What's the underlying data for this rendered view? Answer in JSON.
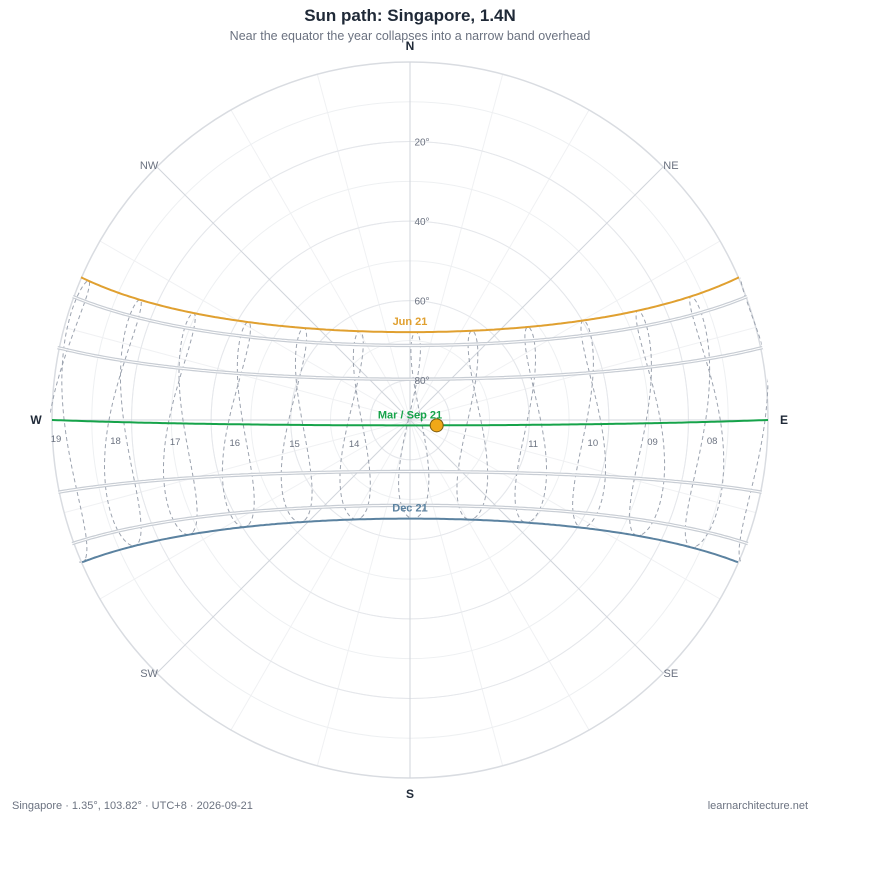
{
  "title": "Sun path: Singapore, 1.4N",
  "subtitle": "Near the equator the year collapses into a narrow band overhead",
  "footer": {
    "location": "Singapore  ·  1.35°, 103.82°  ·  UTC+8  ·  2026-09-21",
    "credit": "learnarchitecture.net"
  },
  "chart_data": {
    "type": "polar sun-path",
    "latitude": 1.35,
    "longitude": 103.82,
    "timezone": "UTC+8",
    "date": "2026-09-21",
    "directions": [
      {
        "label": "N",
        "azimuth": 0,
        "major": true
      },
      {
        "label": "NE",
        "azimuth": 45,
        "major": false
      },
      {
        "label": "E",
        "azimuth": 90,
        "major": true
      },
      {
        "label": "SE",
        "azimuth": 135,
        "major": false
      },
      {
        "label": "S",
        "azimuth": 180,
        "major": true
      },
      {
        "label": "SW",
        "azimuth": 225,
        "major": false
      },
      {
        "label": "W",
        "azimuth": 270,
        "major": true
      },
      {
        "label": "NW",
        "azimuth": 315,
        "major": false
      }
    ],
    "altitude_rings": [
      20,
      40,
      60,
      80
    ],
    "altitude_labels": [
      "20°",
      "40°",
      "60°",
      "80°"
    ],
    "hour_labels": [
      {
        "label": "08",
        "hour": 8
      },
      {
        "label": "09",
        "hour": 9
      },
      {
        "label": "10",
        "hour": 10
      },
      {
        "label": "11",
        "hour": 11
      },
      {
        "label": "14",
        "hour": 14
      },
      {
        "label": "15",
        "hour": 15
      },
      {
        "label": "16",
        "hour": 16
      },
      {
        "label": "17",
        "hour": 17
      },
      {
        "label": "18",
        "hour": 18
      },
      {
        "label": "19",
        "hour": 19
      }
    ],
    "day_paths": [
      {
        "name": "Jun 21",
        "declination": 23.44,
        "highlight": true,
        "color": "#e0a030"
      },
      {
        "declination": 20.1,
        "highlight": false,
        "color": "#c8cdd4"
      },
      {
        "declination": 11.6,
        "highlight": false,
        "color": "#c8cdd4"
      },
      {
        "name": "Mar / Sep 21",
        "declination": 0.0,
        "highlight": true,
        "color": "#16a34a"
      },
      {
        "declination": -11.6,
        "highlight": false,
        "color": "#c8cdd4"
      },
      {
        "declination": -20.1,
        "highlight": false,
        "color": "#c8cdd4"
      },
      {
        "name": "Dec 21",
        "declination": -23.44,
        "highlight": true,
        "color": "#5b82a0"
      }
    ],
    "current_sun": {
      "date": "2026-09-21",
      "declination": 0.0,
      "hour": 12.5,
      "color": "#f0a818"
    },
    "colors": {
      "rings": "#e5e7eb",
      "axes": "#d1d5db",
      "analemma": "#9ca3af"
    }
  }
}
